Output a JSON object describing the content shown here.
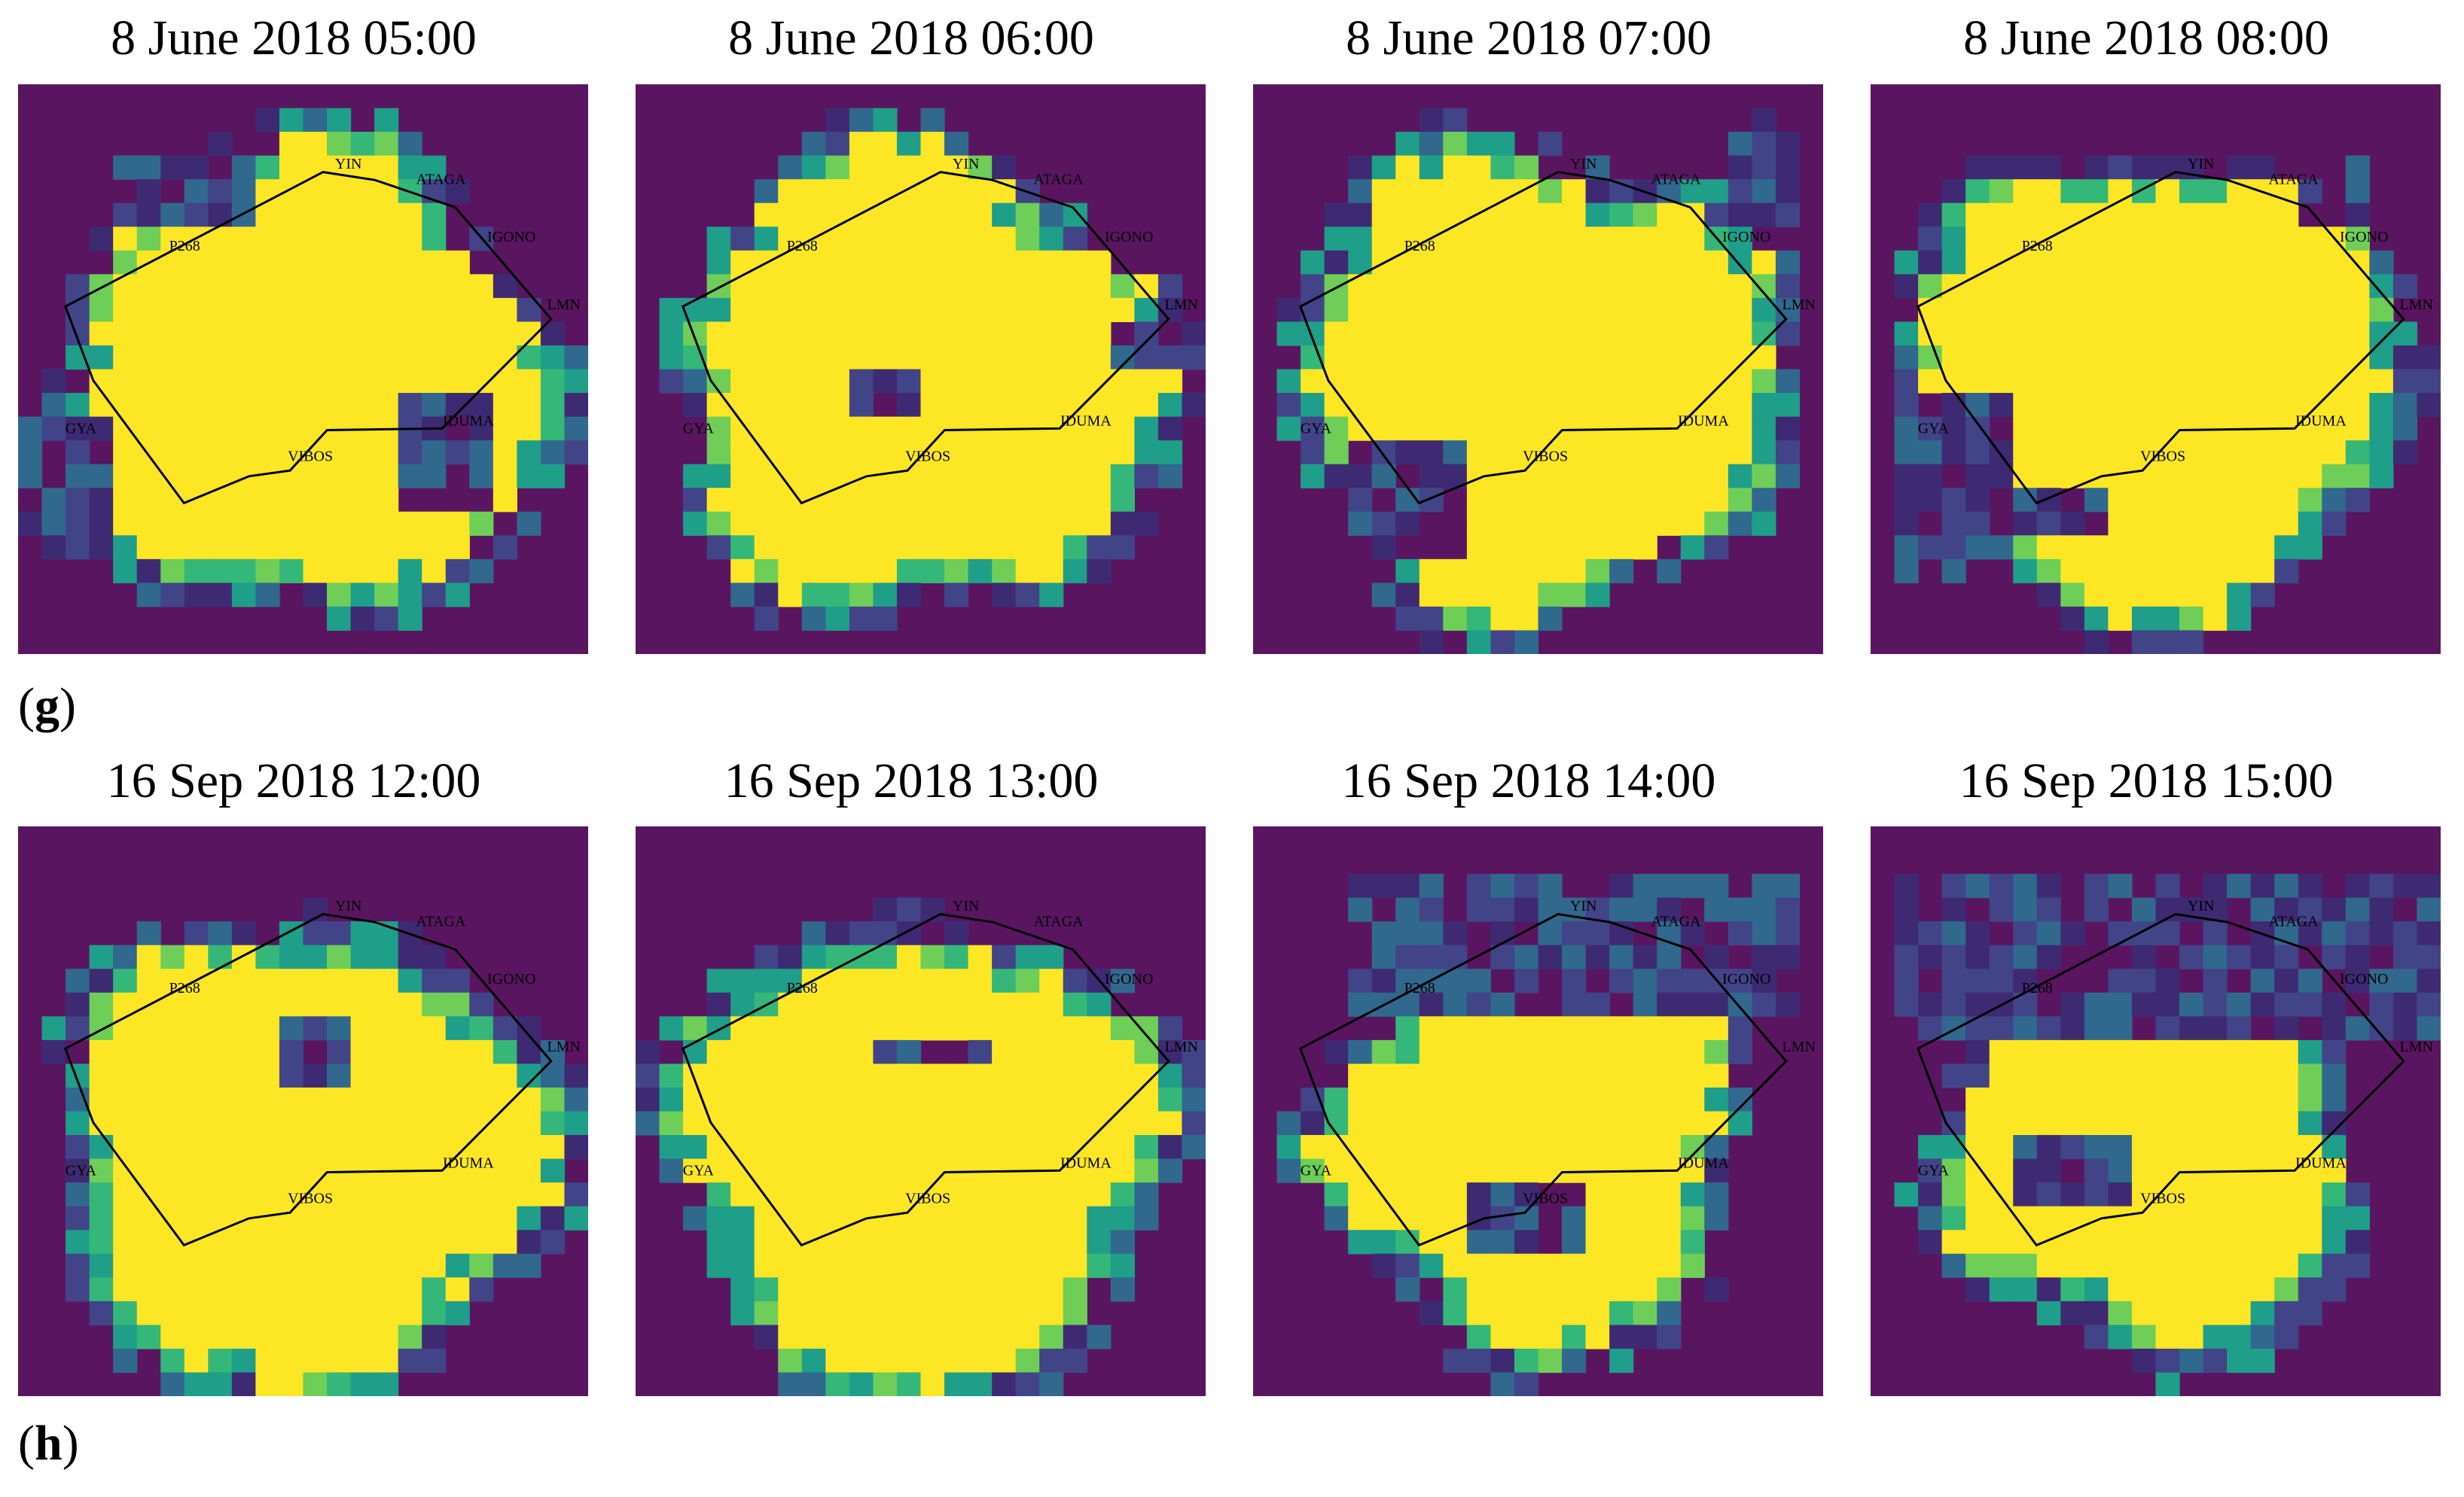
{
  "colors": {
    "background": "#5a1561",
    "dark": "#3e2a73",
    "indigo": "#424488",
    "blue": "#31688e",
    "teal": "#1f9e89",
    "green": "#35b779",
    "lime": "#6ece58",
    "yellow": "#fde725",
    "boundary": "#000000"
  },
  "station_labels": [
    "YIN",
    "ATAGA",
    "IGONO",
    "LMN",
    "IDUMA",
    "VIBOS",
    "GYA",
    "P268"
  ],
  "rows": [
    {
      "label_open": "(",
      "label_letter": "g",
      "label_close": ")",
      "panels": [
        {
          "title": "8 June 2018 05:00"
        },
        {
          "title": "8 June 2018 06:00"
        },
        {
          "title": "8 June 2018 07:00"
        },
        {
          "title": "8 June 2018 08:00"
        }
      ]
    },
    {
      "label_open": "(",
      "label_letter": "h",
      "label_close": ")",
      "panels": [
        {
          "title": "16 Sep 2018 12:00"
        },
        {
          "title": "16 Sep 2018 13:00"
        },
        {
          "title": "16 Sep 2018 14:00"
        },
        {
          "title": "16 Sep 2018 15:00"
        }
      ]
    }
  ]
}
